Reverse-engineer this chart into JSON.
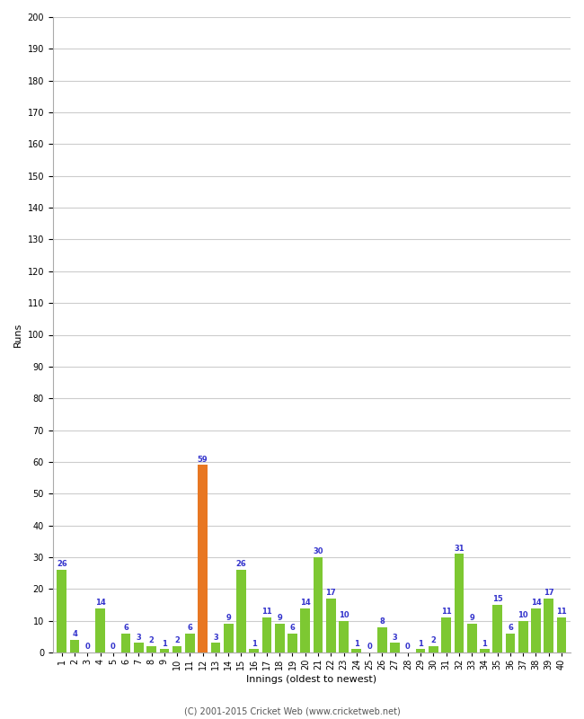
{
  "innings": [
    1,
    2,
    3,
    4,
    5,
    6,
    7,
    8,
    9,
    10,
    11,
    12,
    13,
    14,
    15,
    16,
    17,
    18,
    19,
    20,
    21,
    22,
    23,
    24,
    25,
    26,
    27,
    28,
    29,
    30,
    31,
    32,
    33,
    34,
    35,
    36,
    37,
    38,
    39,
    40
  ],
  "runs": [
    26,
    4,
    0,
    14,
    0,
    6,
    3,
    2,
    1,
    2,
    6,
    59,
    3,
    9,
    26,
    1,
    11,
    9,
    6,
    14,
    30,
    17,
    10,
    1,
    0,
    8,
    3,
    0,
    1,
    2,
    11,
    31,
    9,
    1,
    15,
    6,
    10,
    14,
    17,
    11
  ],
  "colors": [
    "#7dc832",
    "#7dc832",
    "#7dc832",
    "#7dc832",
    "#7dc832",
    "#7dc832",
    "#7dc832",
    "#7dc832",
    "#7dc832",
    "#7dc832",
    "#7dc832",
    "#e87722",
    "#7dc832",
    "#7dc832",
    "#7dc832",
    "#7dc832",
    "#7dc832",
    "#7dc832",
    "#7dc832",
    "#7dc832",
    "#7dc832",
    "#7dc832",
    "#7dc832",
    "#7dc832",
    "#7dc832",
    "#7dc832",
    "#7dc832",
    "#7dc832",
    "#7dc832",
    "#7dc832",
    "#7dc832",
    "#7dc832",
    "#7dc832",
    "#7dc832",
    "#7dc832",
    "#7dc832",
    "#7dc832",
    "#7dc832",
    "#7dc832",
    "#7dc832"
  ],
  "xlabel": "Innings (oldest to newest)",
  "ylabel": "Runs",
  "ylim": [
    0,
    200
  ],
  "yticks": [
    0,
    10,
    20,
    30,
    40,
    50,
    60,
    70,
    80,
    90,
    100,
    110,
    120,
    130,
    140,
    150,
    160,
    170,
    180,
    190,
    200
  ],
  "footer": "(C) 2001-2015 Cricket Web (www.cricketweb.net)",
  "label_color": "#3333cc",
  "bar_label_fontsize": 6,
  "axis_label_fontsize": 8,
  "tick_fontsize": 7,
  "background_color": "#ffffff",
  "grid_color": "#cccccc",
  "fig_width": 6.5,
  "fig_height": 8.0,
  "dpi": 100
}
